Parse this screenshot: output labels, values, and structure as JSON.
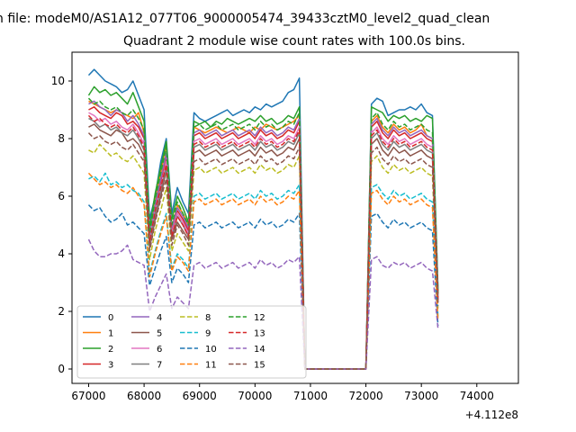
{
  "chart_data": {
    "type": "line",
    "suptitle": "n file: modeM0/AS1A12_077T06_9000005474_39433cztM0_level2_quad_clean",
    "title": "Quadrant 2 module wise count rates with 100.0s bins.",
    "xlabel": "",
    "ylabel": "",
    "x_offset_label": "+4.112e8",
    "xlim": [
      66700,
      74750
    ],
    "ylim": [
      -0.5,
      11.0
    ],
    "x_ticks": [
      67000,
      68000,
      69000,
      70000,
      71000,
      72000,
      73000,
      74000
    ],
    "x_tick_labels": [
      "67000",
      "68000",
      "69000",
      "70000",
      "71000",
      "72000",
      "73000",
      "74000"
    ],
    "y_ticks": [
      0,
      2,
      4,
      6,
      8,
      10
    ],
    "y_tick_labels": [
      "0",
      "2",
      "4",
      "6",
      "8",
      "10"
    ],
    "grid": false,
    "legend": {
      "placement": "lower-left",
      "columns": 4
    },
    "x_units": "seconds (offset)",
    "bin_seconds": 100,
    "x_start": 67000,
    "x_step": 100,
    "series": [
      {
        "name": "0",
        "color": "#1f77b4",
        "dash": "solid",
        "values": [
          10.2,
          10.4,
          10.2,
          10.0,
          9.9,
          9.8,
          9.6,
          9.7,
          10.0,
          9.5,
          9.0,
          5.2,
          6.0,
          7.2,
          8.0,
          5.4,
          6.3,
          5.8,
          5.4,
          8.9,
          8.7,
          8.6,
          8.7,
          8.8,
          8.9,
          9.0,
          8.8,
          8.9,
          9.0,
          8.9,
          9.1,
          9.0,
          9.2,
          9.1,
          9.2,
          9.3,
          9.6,
          9.7,
          10.1,
          0.0,
          0.0,
          0.0,
          0.0,
          0.0,
          0.0,
          0.0,
          0.0,
          0.0,
          0.0,
          0.0,
          0.0,
          9.2,
          9.4,
          9.3,
          8.8,
          8.9,
          9.0,
          9.0,
          9.1,
          9.0,
          9.2,
          8.9,
          8.8,
          2.8
        ]
      },
      {
        "name": "1",
        "color": "#ff7f0e",
        "dash": "solid",
        "values": [
          9.3,
          9.2,
          9.1,
          9.0,
          8.9,
          9.0,
          8.9,
          8.8,
          8.7,
          8.9,
          8.2,
          4.6,
          5.8,
          6.8,
          7.8,
          4.9,
          5.7,
          5.4,
          5.0,
          8.4,
          8.3,
          8.2,
          8.3,
          8.4,
          8.3,
          8.2,
          8.3,
          8.4,
          8.3,
          8.2,
          8.4,
          8.3,
          8.5,
          8.4,
          8.3,
          8.4,
          8.5,
          8.6,
          8.8,
          0.0,
          0.0,
          0.0,
          0.0,
          0.0,
          0.0,
          0.0,
          0.0,
          0.0,
          0.0,
          0.0,
          0.0,
          8.6,
          8.8,
          8.4,
          8.2,
          8.5,
          8.3,
          8.4,
          8.2,
          8.3,
          8.5,
          8.1,
          8.0,
          2.6
        ]
      },
      {
        "name": "2",
        "color": "#2ca02c",
        "dash": "solid",
        "values": [
          9.5,
          9.8,
          9.6,
          9.7,
          9.5,
          9.6,
          9.4,
          9.2,
          9.6,
          9.1,
          8.6,
          4.9,
          6.1,
          7.0,
          7.9,
          5.2,
          6.0,
          5.6,
          5.1,
          8.6,
          8.5,
          8.6,
          8.4,
          8.6,
          8.5,
          8.7,
          8.6,
          8.5,
          8.6,
          8.7,
          8.6,
          8.8,
          8.6,
          8.7,
          8.5,
          8.6,
          8.8,
          8.7,
          9.1,
          0.0,
          0.0,
          0.0,
          0.0,
          0.0,
          0.0,
          0.0,
          0.0,
          0.0,
          0.0,
          0.0,
          0.0,
          9.1,
          9.0,
          8.9,
          8.6,
          8.8,
          8.7,
          8.8,
          8.6,
          8.7,
          8.6,
          8.8,
          8.7,
          2.7
        ]
      },
      {
        "name": "3",
        "color": "#d62728",
        "dash": "solid",
        "values": [
          9.0,
          9.1,
          8.9,
          8.8,
          8.7,
          8.9,
          8.8,
          8.5,
          8.6,
          8.4,
          8.0,
          4.5,
          5.6,
          6.5,
          7.4,
          4.8,
          5.5,
          5.2,
          4.8,
          8.1,
          8.2,
          8.0,
          8.1,
          8.2,
          8.0,
          8.1,
          8.2,
          8.0,
          8.1,
          8.2,
          8.0,
          8.3,
          8.1,
          8.2,
          8.0,
          8.1,
          8.3,
          8.2,
          8.6,
          0.0,
          0.0,
          0.0,
          0.0,
          0.0,
          0.0,
          0.0,
          0.0,
          0.0,
          0.0,
          0.0,
          0.0,
          8.4,
          8.6,
          8.2,
          8.0,
          8.3,
          8.1,
          8.2,
          8.0,
          8.1,
          8.2,
          8.0,
          7.9,
          2.5
        ]
      },
      {
        "name": "4",
        "color": "#9467bd",
        "dash": "solid",
        "values": [
          9.2,
          9.3,
          9.1,
          9.0,
          8.8,
          9.0,
          8.9,
          8.6,
          8.8,
          8.5,
          8.1,
          4.6,
          5.7,
          6.6,
          7.5,
          4.9,
          5.6,
          5.3,
          4.9,
          8.2,
          8.3,
          8.1,
          8.2,
          8.3,
          8.1,
          8.2,
          8.3,
          8.1,
          8.2,
          8.3,
          8.1,
          8.4,
          8.2,
          8.3,
          8.1,
          8.2,
          8.4,
          8.3,
          8.7,
          0.0,
          0.0,
          0.0,
          0.0,
          0.0,
          0.0,
          0.0,
          0.0,
          0.0,
          0.0,
          0.0,
          0.0,
          8.5,
          8.7,
          8.3,
          8.1,
          8.4,
          8.2,
          8.3,
          8.1,
          8.2,
          8.3,
          8.1,
          8.0,
          2.5
        ]
      },
      {
        "name": "5",
        "color": "#8c564b",
        "dash": "solid",
        "values": [
          8.4,
          8.5,
          8.3,
          8.2,
          8.1,
          8.3,
          8.2,
          7.9,
          8.0,
          7.8,
          7.4,
          4.2,
          5.2,
          6.0,
          6.9,
          4.5,
          5.1,
          4.8,
          4.5,
          7.5,
          7.6,
          7.4,
          7.5,
          7.6,
          7.4,
          7.5,
          7.6,
          7.4,
          7.5,
          7.6,
          7.4,
          7.7,
          7.5,
          7.6,
          7.4,
          7.5,
          7.7,
          7.6,
          8.0,
          0.0,
          0.0,
          0.0,
          0.0,
          0.0,
          0.0,
          0.0,
          0.0,
          0.0,
          0.0,
          0.0,
          0.0,
          7.8,
          8.0,
          7.6,
          7.4,
          7.7,
          7.5,
          7.6,
          7.4,
          7.5,
          7.6,
          7.4,
          7.3,
          2.3
        ]
      },
      {
        "name": "6",
        "color": "#e377c2",
        "dash": "solid",
        "values": [
          8.9,
          8.8,
          8.6,
          8.7,
          8.5,
          8.6,
          8.4,
          8.3,
          8.5,
          8.2,
          7.8,
          4.4,
          5.5,
          6.3,
          7.2,
          4.7,
          5.4,
          5.1,
          4.7,
          7.9,
          8.0,
          7.8,
          7.9,
          8.0,
          7.8,
          7.9,
          8.0,
          7.8,
          7.9,
          8.0,
          7.8,
          8.1,
          7.9,
          8.0,
          7.8,
          7.9,
          8.1,
          8.0,
          8.4,
          0.0,
          0.0,
          0.0,
          0.0,
          0.0,
          0.0,
          0.0,
          0.0,
          0.0,
          0.0,
          0.0,
          0.0,
          8.2,
          8.4,
          8.0,
          7.8,
          8.1,
          7.9,
          8.0,
          7.8,
          7.9,
          8.0,
          7.8,
          7.7,
          2.4
        ]
      },
      {
        "name": "7",
        "color": "#7f7f7f",
        "dash": "solid",
        "values": [
          8.7,
          8.6,
          8.4,
          8.5,
          8.3,
          8.4,
          8.2,
          8.1,
          8.3,
          8.0,
          7.6,
          4.3,
          5.4,
          6.2,
          7.0,
          4.6,
          5.3,
          5.0,
          4.6,
          7.7,
          7.8,
          7.6,
          7.7,
          7.8,
          7.6,
          7.7,
          7.8,
          7.6,
          7.7,
          7.8,
          7.6,
          7.9,
          7.7,
          7.8,
          7.6,
          7.7,
          7.9,
          7.8,
          8.2,
          0.0,
          0.0,
          0.0,
          0.0,
          0.0,
          0.0,
          0.0,
          0.0,
          0.0,
          0.0,
          0.0,
          0.0,
          8.0,
          8.2,
          7.8,
          7.6,
          7.9,
          7.7,
          7.8,
          7.6,
          7.7,
          7.8,
          7.6,
          7.5,
          2.4
        ]
      },
      {
        "name": "8",
        "color": "#bcbd22",
        "dash": "dashed",
        "values": [
          7.6,
          7.5,
          7.8,
          7.6,
          7.4,
          7.5,
          7.3,
          7.2,
          7.4,
          7.1,
          6.8,
          3.8,
          4.8,
          5.5,
          6.3,
          4.1,
          4.7,
          4.4,
          4.1,
          6.9,
          7.0,
          6.8,
          6.9,
          7.0,
          6.8,
          6.9,
          7.0,
          6.8,
          6.9,
          7.0,
          6.8,
          7.1,
          6.9,
          7.0,
          6.8,
          6.9,
          7.1,
          7.0,
          7.4,
          0.0,
          0.0,
          0.0,
          0.0,
          0.0,
          0.0,
          0.0,
          0.0,
          0.0,
          0.0,
          0.0,
          0.0,
          7.2,
          7.4,
          7.0,
          6.8,
          7.1,
          6.9,
          7.0,
          6.8,
          6.9,
          7.0,
          6.8,
          6.7,
          2.1
        ]
      },
      {
        "name": "9",
        "color": "#17becf",
        "dash": "dashed",
        "values": [
          6.6,
          6.7,
          6.5,
          6.8,
          6.4,
          6.5,
          6.3,
          6.4,
          6.2,
          6.1,
          5.8,
          3.3,
          4.1,
          4.8,
          5.4,
          3.5,
          4.0,
          3.8,
          3.5,
          6.0,
          6.1,
          5.9,
          6.0,
          6.1,
          5.9,
          6.0,
          6.1,
          5.9,
          6.0,
          6.1,
          5.9,
          6.2,
          6.0,
          6.1,
          5.9,
          6.0,
          6.2,
          6.1,
          6.4,
          0.0,
          0.0,
          0.0,
          0.0,
          0.0,
          0.0,
          0.0,
          0.0,
          0.0,
          0.0,
          0.0,
          0.0,
          6.3,
          6.4,
          6.1,
          5.9,
          6.2,
          6.0,
          6.1,
          5.9,
          6.0,
          6.1,
          5.9,
          5.8,
          1.8
        ]
      },
      {
        "name": "10",
        "color": "#1f77b4",
        "dash": "dashed",
        "values": [
          5.7,
          5.5,
          5.6,
          5.3,
          5.1,
          5.2,
          5.4,
          5.0,
          5.1,
          4.9,
          4.7,
          2.9,
          3.5,
          4.1,
          4.6,
          3.0,
          3.5,
          3.3,
          3.0,
          5.0,
          5.1,
          4.9,
          5.0,
          5.1,
          4.9,
          5.0,
          5.1,
          4.9,
          5.0,
          5.1,
          4.9,
          5.2,
          5.0,
          5.1,
          4.9,
          5.0,
          5.2,
          5.1,
          5.4,
          0.0,
          0.0,
          0.0,
          0.0,
          0.0,
          0.0,
          0.0,
          0.0,
          0.0,
          0.0,
          0.0,
          0.0,
          5.3,
          5.4,
          5.1,
          4.9,
          5.2,
          5.0,
          5.1,
          4.9,
          5.0,
          5.1,
          4.9,
          4.8,
          1.5
        ]
      },
      {
        "name": "11",
        "color": "#ff7f0e",
        "dash": "dashed",
        "values": [
          6.8,
          6.6,
          6.4,
          6.5,
          6.3,
          6.4,
          6.2,
          6.1,
          6.3,
          6.0,
          5.7,
          3.2,
          4.0,
          4.7,
          5.3,
          3.4,
          3.9,
          3.7,
          3.4,
          5.8,
          5.9,
          5.7,
          5.8,
          5.9,
          5.7,
          5.8,
          5.9,
          5.7,
          5.8,
          5.9,
          5.7,
          6.0,
          5.8,
          5.9,
          5.7,
          5.8,
          6.0,
          5.9,
          6.2,
          0.0,
          0.0,
          0.0,
          0.0,
          0.0,
          0.0,
          0.0,
          0.0,
          0.0,
          0.0,
          0.0,
          0.0,
          6.1,
          6.2,
          5.9,
          5.7,
          6.0,
          5.8,
          5.9,
          5.7,
          5.8,
          5.9,
          5.7,
          5.6,
          1.7
        ]
      },
      {
        "name": "12",
        "color": "#2ca02c",
        "dash": "dashed",
        "values": [
          9.4,
          9.2,
          9.3,
          9.1,
          9.0,
          9.1,
          8.9,
          8.8,
          9.0,
          8.7,
          8.3,
          4.7,
          5.9,
          6.8,
          7.7,
          5.0,
          5.8,
          5.4,
          5.0,
          8.4,
          8.5,
          8.3,
          8.4,
          8.5,
          8.3,
          8.4,
          8.5,
          8.3,
          8.4,
          8.5,
          8.3,
          8.6,
          8.4,
          8.5,
          8.3,
          8.4,
          8.6,
          8.5,
          8.9,
          0.0,
          0.0,
          0.0,
          0.0,
          0.0,
          0.0,
          0.0,
          0.0,
          0.0,
          0.0,
          0.0,
          0.0,
          8.7,
          8.9,
          8.5,
          8.3,
          8.6,
          8.4,
          8.5,
          8.3,
          8.4,
          8.5,
          8.3,
          8.2,
          2.6
        ]
      },
      {
        "name": "13",
        "color": "#d62728",
        "dash": "dashed",
        "values": [
          8.8,
          8.6,
          8.7,
          8.5,
          8.4,
          8.5,
          8.3,
          8.2,
          8.4,
          8.1,
          7.7,
          4.4,
          5.5,
          6.3,
          7.1,
          4.6,
          5.3,
          5.0,
          4.6,
          7.8,
          7.9,
          7.7,
          7.8,
          7.9,
          7.7,
          7.8,
          7.9,
          7.7,
          7.8,
          7.9,
          7.7,
          8.0,
          7.8,
          7.9,
          7.7,
          7.8,
          8.0,
          7.9,
          8.3,
          0.0,
          0.0,
          0.0,
          0.0,
          0.0,
          0.0,
          0.0,
          0.0,
          0.0,
          0.0,
          0.0,
          0.0,
          8.1,
          8.3,
          7.9,
          7.7,
          8.0,
          7.8,
          7.9,
          7.7,
          7.8,
          7.9,
          7.7,
          7.6,
          2.4
        ]
      },
      {
        "name": "14",
        "color": "#9467bd",
        "dash": "dashed",
        "values": [
          4.5,
          4.1,
          3.9,
          3.9,
          4.0,
          4.0,
          4.1,
          4.3,
          3.8,
          3.7,
          3.6,
          2.0,
          2.5,
          2.9,
          3.3,
          2.1,
          2.5,
          2.3,
          2.1,
          3.6,
          3.7,
          3.5,
          3.6,
          3.7,
          3.5,
          3.6,
          3.7,
          3.5,
          3.6,
          3.7,
          3.5,
          3.8,
          3.6,
          3.7,
          3.5,
          3.6,
          3.8,
          3.7,
          3.9,
          0.0,
          0.0,
          0.0,
          0.0,
          0.0,
          0.0,
          0.0,
          0.0,
          0.0,
          0.0,
          0.0,
          0.0,
          3.8,
          3.9,
          3.6,
          3.5,
          3.7,
          3.6,
          3.7,
          3.5,
          3.6,
          3.7,
          3.5,
          3.4,
          1.4
        ]
      },
      {
        "name": "15",
        "color": "#8c564b",
        "dash": "dashed",
        "values": [
          8.2,
          8.0,
          8.1,
          7.9,
          7.8,
          7.9,
          7.7,
          7.6,
          7.8,
          7.5,
          7.2,
          4.1,
          5.1,
          5.9,
          6.6,
          4.3,
          5.0,
          4.7,
          4.3,
          7.2,
          7.3,
          7.1,
          7.2,
          7.3,
          7.1,
          7.2,
          7.3,
          7.1,
          7.2,
          7.3,
          7.1,
          7.4,
          7.2,
          7.3,
          7.1,
          7.2,
          7.4,
          7.3,
          7.7,
          0.0,
          0.0,
          0.0,
          0.0,
          0.0,
          0.0,
          0.0,
          0.0,
          0.0,
          0.0,
          0.0,
          0.0,
          7.5,
          7.7,
          7.3,
          7.1,
          7.4,
          7.2,
          7.3,
          7.1,
          7.2,
          7.3,
          7.1,
          7.0,
          2.2
        ]
      }
    ]
  }
}
